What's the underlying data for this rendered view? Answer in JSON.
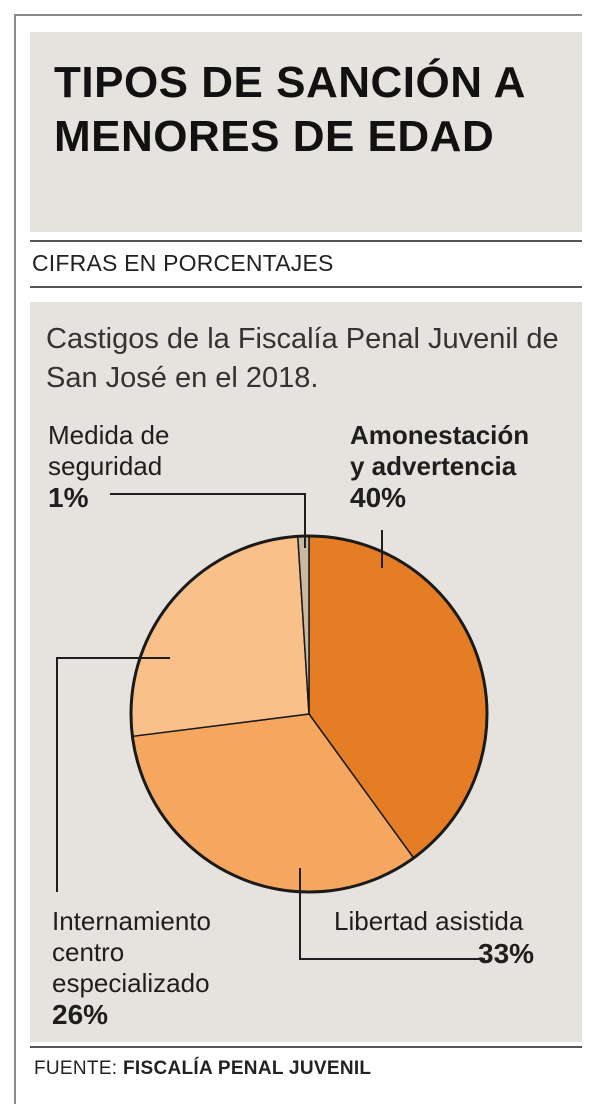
{
  "header": {
    "title": "TIPOS DE SANCIÓN A MENORES DE EDAD",
    "subtitle": "CIFRAS EN PORCENTAJES"
  },
  "description": "Castigos de la Fiscalía Penal Juvenil de San José en el 2018.",
  "labels": {
    "medida": {
      "line1": "Medida de",
      "line2": "seguridad",
      "pct": "1%"
    },
    "amonestacion": {
      "line1": "Amonestación",
      "line2": "y advertencia",
      "pct": "40%"
    },
    "internamiento": {
      "line1": "Internamiento",
      "line2": "centro",
      "line3": "especializado",
      "pct": "26%"
    },
    "libertad": {
      "line1": "Libertad asistida",
      "pct": "33%"
    }
  },
  "footer": {
    "source_label": "FUENTE:",
    "source_value": "FISCALÍA PENAL JUVENIL"
  },
  "chart_data": {
    "type": "pie",
    "title": "TIPOS DE SANCIÓN A MENORES DE EDAD",
    "unit": "%",
    "slices": [
      {
        "name": "Amonestación y advertencia",
        "value": 40,
        "color": "#e57d25"
      },
      {
        "name": "Libertad asistida",
        "value": 33,
        "color": "#f5a760"
      },
      {
        "name": "Internamiento centro especializado",
        "value": 26,
        "color": "#f9c08a"
      },
      {
        "name": "Medida de seguridad",
        "value": 1,
        "color": "#c9b8a2"
      }
    ]
  },
  "colors": {
    "panel": "#e6e3de",
    "outline": "#1a1a1a"
  }
}
